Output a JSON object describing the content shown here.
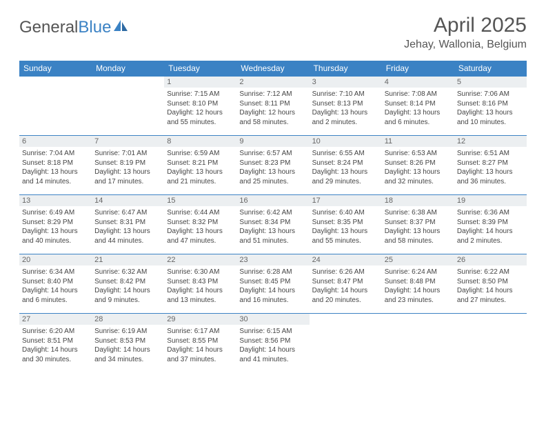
{
  "logo": {
    "text1": "General",
    "text2": "Blue"
  },
  "title": "April 2025",
  "location": "Jehay, Wallonia, Belgium",
  "colors": {
    "header_bg": "#3b82c4",
    "header_text": "#ffffff",
    "daynum_bg": "#eceff1",
    "body_text": "#444444",
    "logo_gray": "#555555",
    "logo_blue": "#3b82c4"
  },
  "daynames": [
    "Sunday",
    "Monday",
    "Tuesday",
    "Wednesday",
    "Thursday",
    "Friday",
    "Saturday"
  ],
  "grid": [
    [
      null,
      null,
      {
        "n": "1",
        "sr": "7:15 AM",
        "ss": "8:10 PM",
        "dl": "12 hours and 55 minutes."
      },
      {
        "n": "2",
        "sr": "7:12 AM",
        "ss": "8:11 PM",
        "dl": "12 hours and 58 minutes."
      },
      {
        "n": "3",
        "sr": "7:10 AM",
        "ss": "8:13 PM",
        "dl": "13 hours and 2 minutes."
      },
      {
        "n": "4",
        "sr": "7:08 AM",
        "ss": "8:14 PM",
        "dl": "13 hours and 6 minutes."
      },
      {
        "n": "5",
        "sr": "7:06 AM",
        "ss": "8:16 PM",
        "dl": "13 hours and 10 minutes."
      }
    ],
    [
      {
        "n": "6",
        "sr": "7:04 AM",
        "ss": "8:18 PM",
        "dl": "13 hours and 14 minutes."
      },
      {
        "n": "7",
        "sr": "7:01 AM",
        "ss": "8:19 PM",
        "dl": "13 hours and 17 minutes."
      },
      {
        "n": "8",
        "sr": "6:59 AM",
        "ss": "8:21 PM",
        "dl": "13 hours and 21 minutes."
      },
      {
        "n": "9",
        "sr": "6:57 AM",
        "ss": "8:23 PM",
        "dl": "13 hours and 25 minutes."
      },
      {
        "n": "10",
        "sr": "6:55 AM",
        "ss": "8:24 PM",
        "dl": "13 hours and 29 minutes."
      },
      {
        "n": "11",
        "sr": "6:53 AM",
        "ss": "8:26 PM",
        "dl": "13 hours and 32 minutes."
      },
      {
        "n": "12",
        "sr": "6:51 AM",
        "ss": "8:27 PM",
        "dl": "13 hours and 36 minutes."
      }
    ],
    [
      {
        "n": "13",
        "sr": "6:49 AM",
        "ss": "8:29 PM",
        "dl": "13 hours and 40 minutes."
      },
      {
        "n": "14",
        "sr": "6:47 AM",
        "ss": "8:31 PM",
        "dl": "13 hours and 44 minutes."
      },
      {
        "n": "15",
        "sr": "6:44 AM",
        "ss": "8:32 PM",
        "dl": "13 hours and 47 minutes."
      },
      {
        "n": "16",
        "sr": "6:42 AM",
        "ss": "8:34 PM",
        "dl": "13 hours and 51 minutes."
      },
      {
        "n": "17",
        "sr": "6:40 AM",
        "ss": "8:35 PM",
        "dl": "13 hours and 55 minutes."
      },
      {
        "n": "18",
        "sr": "6:38 AM",
        "ss": "8:37 PM",
        "dl": "13 hours and 58 minutes."
      },
      {
        "n": "19",
        "sr": "6:36 AM",
        "ss": "8:39 PM",
        "dl": "14 hours and 2 minutes."
      }
    ],
    [
      {
        "n": "20",
        "sr": "6:34 AM",
        "ss": "8:40 PM",
        "dl": "14 hours and 6 minutes."
      },
      {
        "n": "21",
        "sr": "6:32 AM",
        "ss": "8:42 PM",
        "dl": "14 hours and 9 minutes."
      },
      {
        "n": "22",
        "sr": "6:30 AM",
        "ss": "8:43 PM",
        "dl": "14 hours and 13 minutes."
      },
      {
        "n": "23",
        "sr": "6:28 AM",
        "ss": "8:45 PM",
        "dl": "14 hours and 16 minutes."
      },
      {
        "n": "24",
        "sr": "6:26 AM",
        "ss": "8:47 PM",
        "dl": "14 hours and 20 minutes."
      },
      {
        "n": "25",
        "sr": "6:24 AM",
        "ss": "8:48 PM",
        "dl": "14 hours and 23 minutes."
      },
      {
        "n": "26",
        "sr": "6:22 AM",
        "ss": "8:50 PM",
        "dl": "14 hours and 27 minutes."
      }
    ],
    [
      {
        "n": "27",
        "sr": "6:20 AM",
        "ss": "8:51 PM",
        "dl": "14 hours and 30 minutes."
      },
      {
        "n": "28",
        "sr": "6:19 AM",
        "ss": "8:53 PM",
        "dl": "14 hours and 34 minutes."
      },
      {
        "n": "29",
        "sr": "6:17 AM",
        "ss": "8:55 PM",
        "dl": "14 hours and 37 minutes."
      },
      {
        "n": "30",
        "sr": "6:15 AM",
        "ss": "8:56 PM",
        "dl": "14 hours and 41 minutes."
      },
      null,
      null,
      null
    ]
  ],
  "labels": {
    "sunrise": "Sunrise: ",
    "sunset": "Sunset: ",
    "daylight": "Daylight: "
  }
}
